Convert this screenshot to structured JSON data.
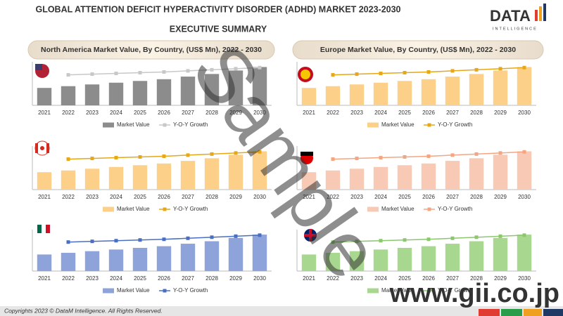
{
  "header": {
    "title": "GLOBAL ATTENTION DEFICIT HYPERACTIVITY DISORDER (ADHD) MARKET 2023-2030",
    "subtitle": "EXECUTIVE SUMMARY",
    "logo": "DATA",
    "logo_sub": "INTELLIGENCE"
  },
  "sections": [
    "North America Market Value, By Country, (US$ Mn), 2022 - 2030",
    "Europe Market Value, By Country, (US$ Mn), 2022 - 2030"
  ],
  "footer": {
    "copyright": "Copyrights 2023 © DataM Intelligence. All Rights Reserved.",
    "watermark": "Sample",
    "site": "www.gii.co.jp"
  },
  "chart_data": [
    {
      "type": "bar",
      "categories": [
        "2021",
        "2022",
        "2023",
        "2024",
        "2025",
        "2026",
        "2027",
        "2028",
        "2029",
        "2030"
      ],
      "ylim": [
        0,
        50
      ],
      "y2lim": [
        0,
        12
      ],
      "series": [
        {
          "name": "Market Value",
          "color": "#8c8c8c",
          "values": [
            20,
            22,
            24,
            26,
            28,
            30,
            33,
            36,
            40,
            44
          ]
        },
        {
          "name": "Y-O-Y Growth",
          "color": "#c8c8c8",
          "axis": "y2",
          "values": [
            null,
            8.4,
            8.6,
            8.8,
            9.0,
            9.2,
            9.5,
            9.8,
            10.1,
            10.4
          ]
        }
      ]
    },
    {
      "type": "bar",
      "categories": [
        "2021",
        "2022",
        "2023",
        "2024",
        "2025",
        "2026",
        "2027",
        "2028",
        "2029",
        "2030"
      ],
      "ylim": [
        0,
        50
      ],
      "y2lim": [
        0,
        12
      ],
      "series": [
        {
          "name": "Market Value",
          "color": "#fdd08a",
          "values": [
            20,
            22,
            24,
            26,
            28,
            30,
            33,
            36,
            40,
            44
          ]
        },
        {
          "name": "Y-O-Y Growth",
          "color": "#e6a817",
          "axis": "y2",
          "values": [
            null,
            8.4,
            8.6,
            8.8,
            9.0,
            9.2,
            9.5,
            9.8,
            10.1,
            10.4
          ]
        }
      ]
    },
    {
      "type": "bar",
      "categories": [
        "2021",
        "2022",
        "2023",
        "2024",
        "2025",
        "2026",
        "2027",
        "2028",
        "2029",
        "2030"
      ],
      "ylim": [
        0,
        50
      ],
      "y2lim": [
        0,
        12
      ],
      "series": [
        {
          "name": "Market Value",
          "color": "#fdd08a",
          "values": [
            20,
            22,
            24,
            26,
            28,
            30,
            33,
            36,
            40,
            44
          ]
        },
        {
          "name": "Y-O-Y Growth",
          "color": "#e6a817",
          "axis": "y2",
          "values": [
            null,
            8.4,
            8.6,
            8.8,
            9.0,
            9.2,
            9.5,
            9.8,
            10.1,
            10.4
          ]
        }
      ]
    },
    {
      "type": "bar",
      "categories": [
        "2021",
        "2022",
        "2023",
        "2024",
        "2025",
        "2026",
        "2027",
        "2028",
        "2029",
        "2030"
      ],
      "ylim": [
        0,
        50
      ],
      "y2lim": [
        0,
        12
      ],
      "series": [
        {
          "name": "Market Value",
          "color": "#f8c9b5",
          "values": [
            20,
            22,
            24,
            26,
            28,
            30,
            33,
            36,
            40,
            44
          ]
        },
        {
          "name": "Y-O-Y Growth",
          "color": "#f4a582",
          "axis": "y2",
          "values": [
            null,
            8.4,
            8.6,
            8.8,
            9.0,
            9.2,
            9.5,
            9.8,
            10.1,
            10.4
          ]
        }
      ]
    },
    {
      "type": "bar",
      "categories": [
        "2021",
        "2022",
        "2023",
        "2024",
        "2025",
        "2026",
        "2027",
        "2028",
        "2029",
        "2030"
      ],
      "ylim": [
        0,
        50
      ],
      "y2lim": [
        0,
        12
      ],
      "series": [
        {
          "name": "Market Value",
          "color": "#8ea3d9",
          "values": [
            20,
            22,
            24,
            26,
            28,
            30,
            33,
            36,
            40,
            44
          ]
        },
        {
          "name": "Y-O-Y Growth",
          "color": "#4a6fc2",
          "axis": "y2",
          "values": [
            null,
            8.4,
            8.6,
            8.8,
            9.0,
            9.2,
            9.5,
            9.8,
            10.1,
            10.4
          ]
        }
      ]
    },
    {
      "type": "bar",
      "categories": [
        "2021",
        "2022",
        "2023",
        "2024",
        "2025",
        "2026",
        "2027",
        "2028",
        "2029",
        "2030"
      ],
      "ylim": [
        0,
        50
      ],
      "y2lim": [
        0,
        12
      ],
      "series": [
        {
          "name": "Market Value",
          "color": "#a8d88f",
          "values": [
            20,
            22,
            24,
            26,
            28,
            30,
            33,
            36,
            40,
            44
          ]
        },
        {
          "name": "Y-O-Y Growth",
          "color": "#8cc76e",
          "axis": "y2",
          "values": [
            null,
            8.4,
            8.6,
            8.8,
            9.0,
            9.2,
            9.5,
            9.8,
            10.1,
            10.4
          ]
        }
      ]
    }
  ]
}
